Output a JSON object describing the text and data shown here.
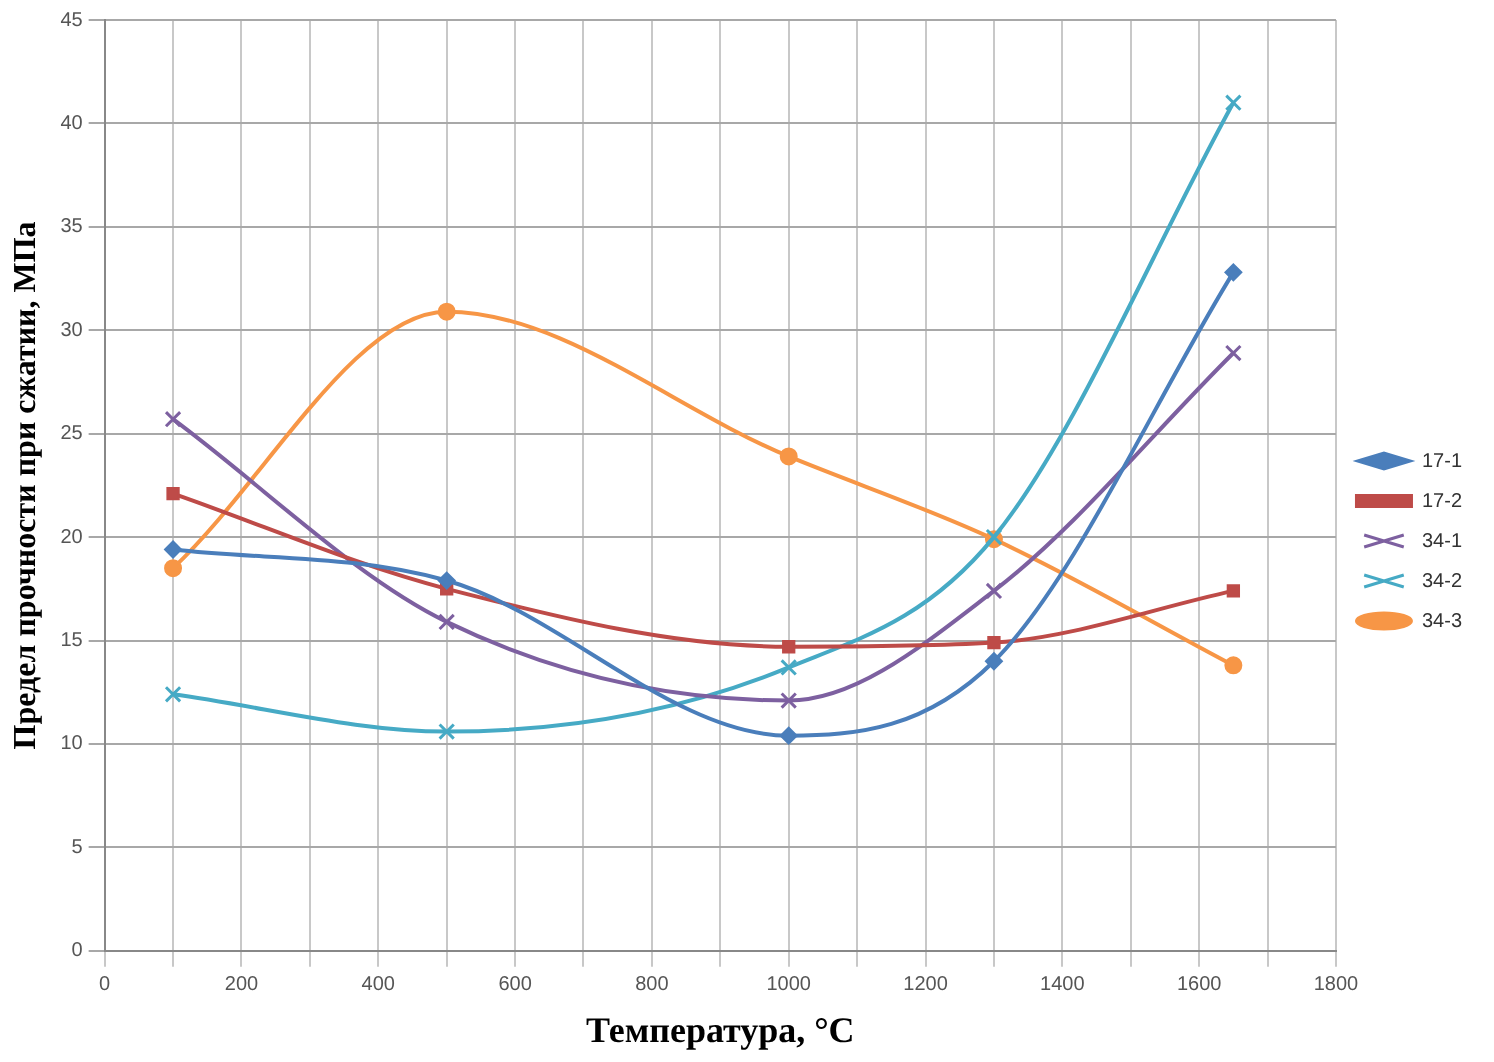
{
  "chart_data": {
    "type": "line",
    "xlabel": "Температура, °C",
    "ylabel": "Предел прочности при сжатии, МПа",
    "x": [
      100,
      500,
      1000,
      1300,
      1650
    ],
    "series": [
      {
        "name": "17-1",
        "color": "#4a7ebb",
        "marker": "diamond",
        "values": [
          19.4,
          17.9,
          10.4,
          14.0,
          32.8
        ]
      },
      {
        "name": "17-2",
        "color": "#be4b48",
        "marker": "square",
        "values": [
          22.1,
          17.5,
          14.7,
          14.9,
          17.4
        ]
      },
      {
        "name": "34-1",
        "color": "#7d60a0",
        "marker": "cross",
        "values": [
          25.7,
          15.9,
          12.1,
          17.4,
          28.9
        ]
      },
      {
        "name": "34-2",
        "color": "#46aac5",
        "marker": "cross",
        "values": [
          12.4,
          10.6,
          13.7,
          20.0,
          41.0
        ]
      },
      {
        "name": "34-3",
        "color": "#f79646",
        "marker": "circle",
        "values": [
          18.5,
          30.9,
          23.9,
          19.9,
          13.8
        ]
      }
    ],
    "xlim": [
      0,
      1800
    ],
    "xticks": [
      0,
      {
        "value": 100,
        "label": null
      },
      200,
      {
        "value": 300,
        "label": null
      },
      400,
      {
        "value": 500,
        "label": null
      },
      600,
      {
        "value": 700,
        "label": null
      },
      800,
      {
        "value": 900,
        "label": null
      },
      1000,
      {
        "value": 1100,
        "label": null
      },
      1200,
      {
        "value": 1300,
        "label": null
      },
      1400,
      {
        "value": 1500,
        "label": null
      },
      1600,
      {
        "value": 1700,
        "label": null
      },
      1800
    ],
    "ylim": [
      0,
      45
    ],
    "yticks": [
      0,
      5,
      10,
      15,
      20,
      25,
      30,
      35,
      40,
      45
    ],
    "grid": true,
    "legend": "right",
    "line_style": "solid"
  }
}
